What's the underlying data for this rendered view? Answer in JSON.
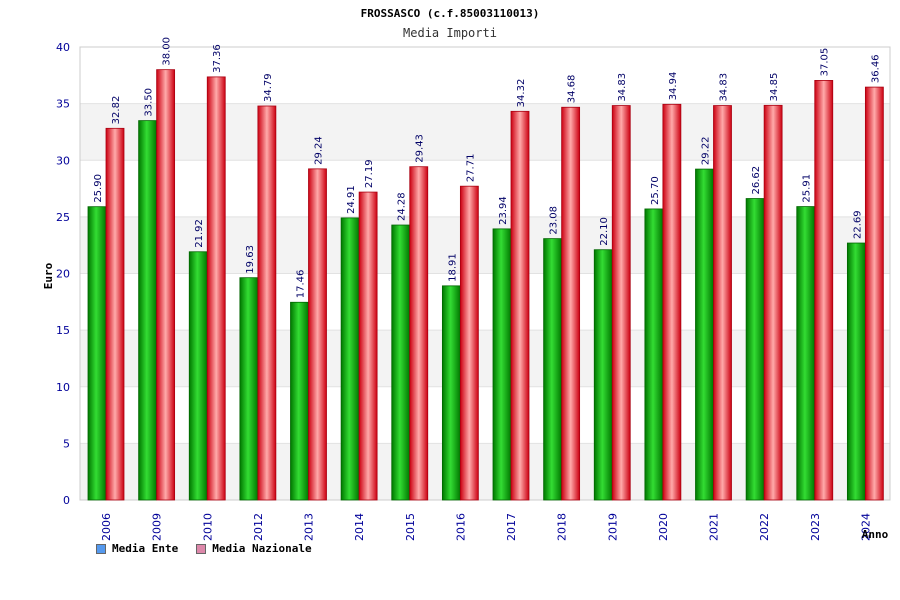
{
  "chart_data": {
    "type": "bar",
    "title": "FROSSASCO (c.f.85003110013)",
    "subtitle": "Media Importi",
    "xlabel": "Anno",
    "ylabel": "Euro",
    "ylim": [
      0,
      40
    ],
    "yticks": [
      0,
      5,
      10,
      15,
      20,
      25,
      30,
      35,
      40
    ],
    "grid": true,
    "legend_position": "bottom-left",
    "categories": [
      "2006",
      "2009",
      "2010",
      "2012",
      "2013",
      "2014",
      "2015",
      "2016",
      "2017",
      "2018",
      "2019",
      "2020",
      "2021",
      "2022",
      "2023",
      "2024"
    ],
    "series": [
      {
        "name": "Media Ente",
        "color": "#00aa00",
        "legend_color": "#5599ee",
        "values": [
          25.9,
          33.5,
          21.92,
          19.63,
          17.46,
          24.91,
          24.28,
          18.91,
          23.94,
          23.08,
          22.1,
          25.7,
          29.22,
          26.62,
          25.91,
          22.69
        ],
        "labels": [
          "25.90",
          "33.50",
          "21.92",
          "19.63",
          "17.46",
          "24.91",
          "24.28",
          "18.91",
          "23.94",
          "23.08",
          "22.10",
          "25.70",
          "29.22",
          "26.62",
          "25.91",
          "22.69"
        ]
      },
      {
        "name": "Media Nazionale",
        "color": "#ee1122",
        "legend_color": "#dd88aa",
        "values": [
          32.82,
          38.0,
          37.36,
          34.79,
          29.24,
          27.19,
          29.43,
          27.71,
          34.32,
          34.68,
          34.83,
          34.94,
          34.83,
          34.85,
          37.05,
          36.46
        ],
        "labels": [
          "32.82",
          "38.00",
          "37.36",
          "34.79",
          "29.24",
          "27.19",
          "29.43",
          "27.71",
          "34.32",
          "34.68",
          "34.83",
          "34.94",
          "34.83",
          "34.85",
          "37.05",
          "36.46"
        ]
      }
    ]
  }
}
